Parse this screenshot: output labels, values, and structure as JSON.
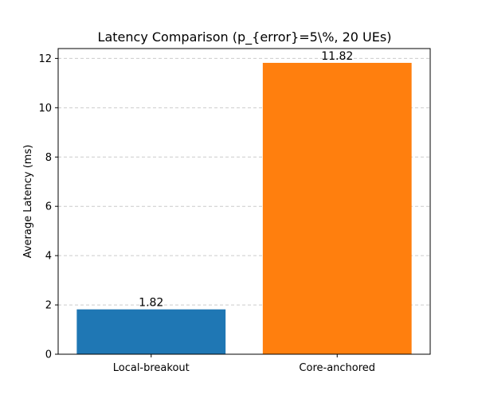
{
  "chart_data": {
    "type": "bar",
    "title": "Latency Comparison (p_{error}=5\\%, 20 UEs)",
    "xlabel": "",
    "ylabel": "Average Latency (ms)",
    "categories": [
      "Local-breakout",
      "Core-anchored"
    ],
    "values": [
      1.82,
      11.82
    ],
    "data_labels": [
      "1.82",
      "11.82"
    ],
    "colors": [
      "#1f77b4",
      "#ff7f0e"
    ],
    "ylim": [
      0,
      12.4
    ],
    "yticks": [
      0,
      2,
      4,
      6,
      8,
      10,
      12
    ],
    "grid": "y-dashed",
    "legend": "none"
  }
}
